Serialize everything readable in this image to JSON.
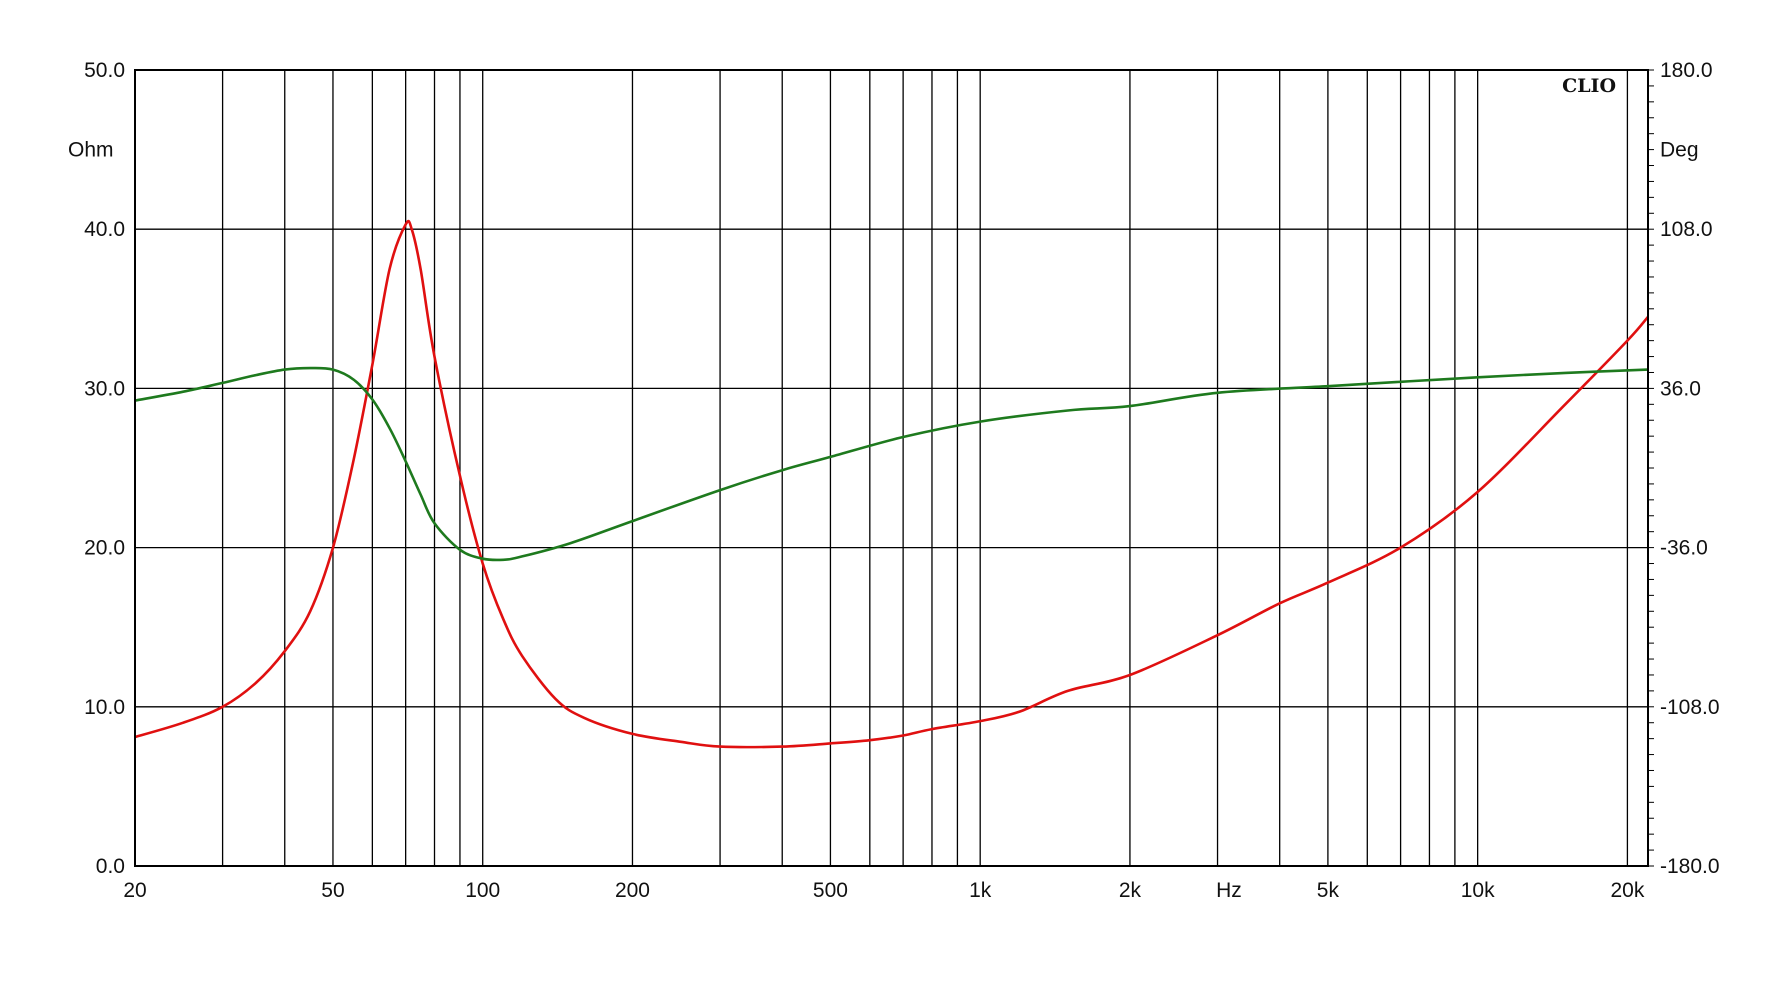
{
  "chart_data": {
    "type": "line",
    "brand": "CLIO",
    "x_axis": {
      "scale": "log",
      "range": [
        20,
        22000
      ],
      "unit_label": "Hz",
      "tick_labels": [
        {
          "value": 20,
          "label": "20"
        },
        {
          "value": 50,
          "label": "50"
        },
        {
          "value": 100,
          "label": "100"
        },
        {
          "value": 200,
          "label": "200"
        },
        {
          "value": 500,
          "label": "500"
        },
        {
          "value": 1000,
          "label": "1k"
        },
        {
          "value": 2000,
          "label": "2k"
        },
        {
          "value": 5000,
          "label": "5k"
        },
        {
          "value": 10000,
          "label": "10k"
        },
        {
          "value": 20000,
          "label": "20k"
        }
      ],
      "gridlines": [
        20,
        30,
        40,
        50,
        60,
        70,
        80,
        90,
        100,
        200,
        300,
        400,
        500,
        600,
        700,
        800,
        900,
        1000,
        2000,
        3000,
        4000,
        5000,
        6000,
        7000,
        8000,
        9000,
        10000,
        20000
      ]
    },
    "y_left": {
      "label": "Ohm",
      "range": [
        0,
        50
      ],
      "ticks": [
        {
          "value": 0,
          "label": "0.0"
        },
        {
          "value": 10,
          "label": "10.0"
        },
        {
          "value": 20,
          "label": "20.0"
        },
        {
          "value": 30,
          "label": "30.0"
        },
        {
          "value": 40,
          "label": "40.0"
        },
        {
          "value": 50,
          "label": "50.0"
        }
      ]
    },
    "y_right": {
      "label": "Deg",
      "range": [
        -180,
        180
      ],
      "ticks": [
        {
          "value": -180,
          "label": "-180.0"
        },
        {
          "value": -108,
          "label": "-108.0"
        },
        {
          "value": -36,
          "label": "-36.0"
        },
        {
          "value": 36,
          "label": "36.0"
        },
        {
          "value": 108,
          "label": "108.0"
        },
        {
          "value": 180,
          "label": "180.0"
        }
      ]
    },
    "grid": true,
    "series": [
      {
        "axis": "left",
        "color": "#e01010",
        "points": [
          [
            20,
            8.1
          ],
          [
            25,
            9.0
          ],
          [
            30,
            10.0
          ],
          [
            35,
            11.5
          ],
          [
            40,
            13.5
          ],
          [
            45,
            16.0
          ],
          [
            50,
            20.0
          ],
          [
            55,
            25.5
          ],
          [
            60,
            31.5
          ],
          [
            65,
            37.5
          ],
          [
            70,
            40.3
          ],
          [
            72,
            40.0
          ],
          [
            75,
            37.5
          ],
          [
            80,
            32.0
          ],
          [
            90,
            24.5
          ],
          [
            100,
            19.0
          ],
          [
            110,
            15.5
          ],
          [
            120,
            13.2
          ],
          [
            140,
            10.5
          ],
          [
            160,
            9.3
          ],
          [
            200,
            8.3
          ],
          [
            250,
            7.8
          ],
          [
            300,
            7.5
          ],
          [
            400,
            7.5
          ],
          [
            500,
            7.7
          ],
          [
            600,
            7.9
          ],
          [
            700,
            8.2
          ],
          [
            800,
            8.6
          ],
          [
            1000,
            9.1
          ],
          [
            1200,
            9.7
          ],
          [
            1500,
            11.0
          ],
          [
            2000,
            12.0
          ],
          [
            3000,
            14.5
          ],
          [
            4000,
            16.5
          ],
          [
            5000,
            17.8
          ],
          [
            7000,
            20.0
          ],
          [
            10000,
            23.5
          ],
          [
            15000,
            29.0
          ],
          [
            20000,
            33.0
          ],
          [
            22000,
            34.5
          ]
        ]
      },
      {
        "axis": "right",
        "color": "#1e7a1e",
        "points": [
          [
            20,
            30.5
          ],
          [
            25,
            34.5
          ],
          [
            30,
            38.5
          ],
          [
            35,
            42.0
          ],
          [
            40,
            44.5
          ],
          [
            45,
            45.2
          ],
          [
            50,
            44.5
          ],
          [
            55,
            40.0
          ],
          [
            60,
            31.0
          ],
          [
            65,
            18.0
          ],
          [
            70,
            3.0
          ],
          [
            75,
            -12.0
          ],
          [
            80,
            -25.0
          ],
          [
            90,
            -37.0
          ],
          [
            100,
            -41.0
          ],
          [
            110,
            -41.5
          ],
          [
            120,
            -40.0
          ],
          [
            150,
            -34.0
          ],
          [
            200,
            -24.0
          ],
          [
            300,
            -10.0
          ],
          [
            400,
            -1.0
          ],
          [
            500,
            5.0
          ],
          [
            700,
            14.0
          ],
          [
            1000,
            21.0
          ],
          [
            1500,
            26.0
          ],
          [
            2000,
            28.0
          ],
          [
            3000,
            34.0
          ],
          [
            5000,
            37.0
          ],
          [
            7000,
            39.0
          ],
          [
            10000,
            41.0
          ],
          [
            15000,
            43.0
          ],
          [
            22000,
            44.5
          ]
        ]
      }
    ]
  }
}
